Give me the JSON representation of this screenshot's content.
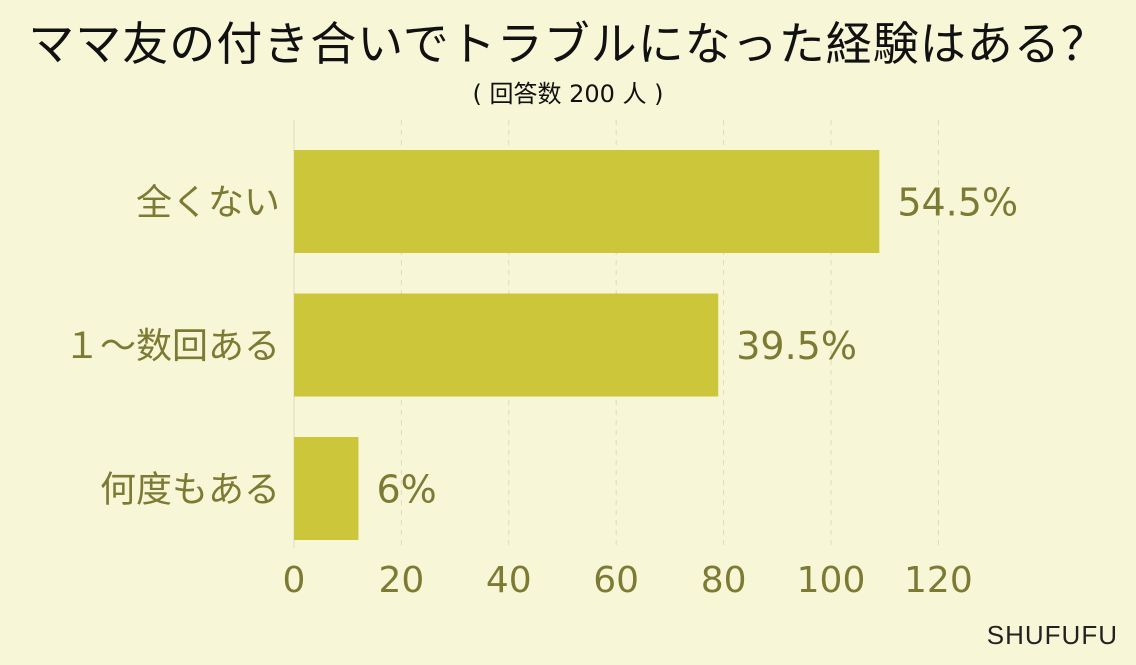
{
  "chart_data": {
    "type": "bar",
    "orientation": "horizontal",
    "title": "ママ友の付き合いでトラブルになった経験はある？",
    "subtitle": "( 回答数 200 人 )",
    "categories": [
      "全くない",
      "１～数回ある",
      "何度もある"
    ],
    "values": [
      109,
      79,
      12
    ],
    "value_labels": [
      "54.5%",
      "39.5%",
      "6%"
    ],
    "xlim": [
      0,
      120
    ],
    "xticks": [
      0,
      20,
      40,
      60,
      80,
      100,
      120
    ],
    "grid": true,
    "legend": "none",
    "colors": {
      "bar": "#cbc63a",
      "text": "#7d7a34",
      "grid": "#dcdcbc",
      "background": "#f7f7d7"
    }
  },
  "credit": "SHUFUFU"
}
